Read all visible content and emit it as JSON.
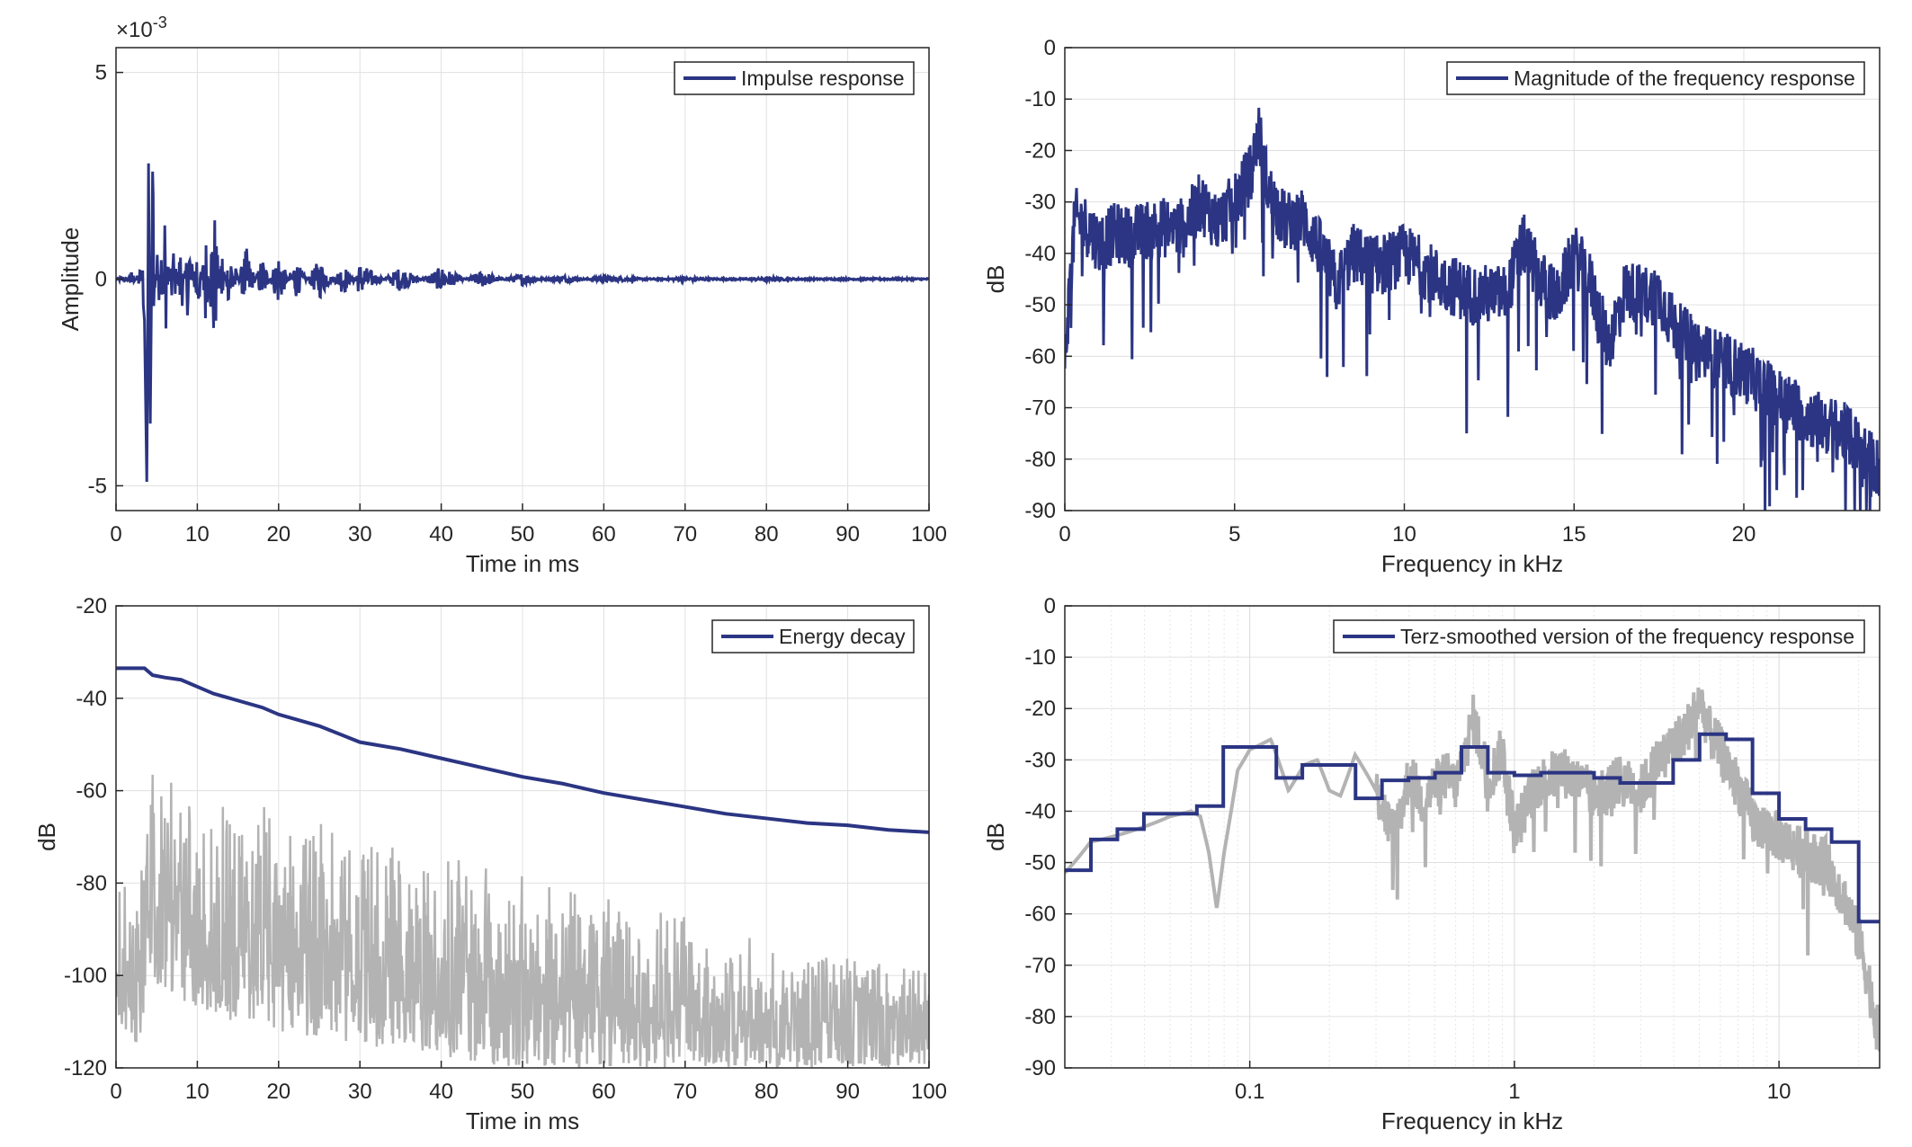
{
  "chart_data": [
    {
      "id": "impulse",
      "type": "line",
      "xlabel": "Time in ms",
      "ylabel": "Amplitude",
      "exponent_label": "×10",
      "exponent_power": "-3",
      "xlim": [
        0,
        100
      ],
      "ylim": [
        -5.6,
        5.6
      ],
      "xticks": [
        "0",
        "10",
        "20",
        "30",
        "40",
        "50",
        "60",
        "70",
        "80",
        "90",
        "100"
      ],
      "yticks": [
        {
          "v": 5,
          "t": "5"
        },
        {
          "v": 0,
          "t": "0"
        },
        {
          "v": -5,
          "t": "-5"
        }
      ],
      "grid": true,
      "legend": {
        "label": "Impulse response",
        "placement": "top-right"
      },
      "series": [
        {
          "name": "Impulse response",
          "color": "#2b3583",
          "x": [
            0,
            1,
            2,
            3,
            3.5,
            3.8,
            4.0,
            4.2,
            4.5,
            5,
            5.5,
            6,
            7,
            8,
            9,
            10,
            11,
            12,
            13,
            14,
            16,
            18,
            20,
            22,
            25,
            28,
            30,
            35,
            40,
            45,
            50,
            55,
            60,
            70,
            80,
            90,
            100
          ],
          "y": [
            0,
            0.1,
            -0.2,
            0.3,
            -1.0,
            -5.1,
            2.8,
            -3.8,
            2.6,
            -1.3,
            1.9,
            -1.6,
            1.0,
            -1.0,
            1.4,
            -1.3,
            1.3,
            -2.1,
            0.9,
            -0.9,
            0.8,
            -0.6,
            0.7,
            -0.5,
            0.5,
            -0.4,
            0.4,
            -0.3,
            0.3,
            -0.2,
            0.15,
            -0.1,
            0.08,
            -0.05,
            0.04,
            -0.02,
            0
          ]
        }
      ]
    },
    {
      "id": "magnitude",
      "type": "line",
      "xlabel": "Frequency in kHz",
      "ylabel": "dB",
      "xlim": [
        0,
        24
      ],
      "ylim": [
        -90,
        0
      ],
      "xticks": [
        {
          "v": 0,
          "t": "0"
        },
        {
          "v": 5,
          "t": "5"
        },
        {
          "v": 10,
          "t": "10"
        },
        {
          "v": 15,
          "t": "15"
        },
        {
          "v": 20,
          "t": "20"
        }
      ],
      "yticks": [
        "0",
        "-10",
        "-20",
        "-30",
        "-40",
        "-50",
        "-60",
        "-70",
        "-80",
        "-90"
      ],
      "grid": true,
      "legend": {
        "label": "Magnitude of the frequency response",
        "placement": "top-right"
      },
      "series": [
        {
          "name": "Magnitude of the frequency response",
          "color": "#2b3583",
          "x": [
            0,
            0.3,
            0.7,
            1.0,
            1.5,
            2.0,
            2.5,
            3.0,
            3.5,
            4.0,
            4.5,
            5.0,
            5.5,
            5.7,
            6.0,
            6.5,
            7.0,
            7.5,
            8.0,
            8.5,
            9.0,
            9.5,
            10.0,
            11.0,
            12.0,
            13.0,
            13.5,
            14.0,
            14.5,
            15.0,
            15.5,
            16.0,
            16.5,
            17.0,
            17.5,
            18.0,
            19.0,
            20.0,
            21.0,
            22.0,
            23.0,
            24.0
          ],
          "y": [
            -60,
            -33,
            -35,
            -38,
            -36,
            -37,
            -35,
            -35,
            -35,
            -30,
            -34,
            -30,
            -24,
            -16,
            -28,
            -34,
            -33,
            -39,
            -46,
            -40,
            -42,
            -42,
            -40,
            -45,
            -48,
            -48,
            -38,
            -45,
            -49,
            -40,
            -46,
            -58,
            -47,
            -48,
            -48,
            -55,
            -60,
            -63,
            -68,
            -72,
            -75,
            -82
          ]
        }
      ]
    },
    {
      "id": "energy",
      "type": "line",
      "xlabel": "Time in ms",
      "ylabel": "dB",
      "xlim": [
        0,
        100
      ],
      "ylim": [
        -120,
        -20
      ],
      "xticks": [
        "0",
        "10",
        "20",
        "30",
        "40",
        "50",
        "60",
        "70",
        "80",
        "90",
        "100"
      ],
      "yticks": [
        {
          "v": -20,
          "t": "-20"
        },
        {
          "v": -40,
          "t": "-40"
        },
        {
          "v": -60,
          "t": "-60"
        },
        {
          "v": -80,
          "t": "-80"
        },
        {
          "v": -100,
          "t": "-100"
        },
        {
          "v": -120,
          "t": "-120"
        }
      ],
      "grid": true,
      "legend": {
        "label": "Energy decay",
        "placement": "top-right"
      },
      "series": [
        {
          "name": "Energy decay",
          "color": "#2b3583",
          "x": [
            0,
            3.5,
            4.5,
            6,
            8,
            10,
            12,
            15,
            18,
            20,
            25,
            30,
            35,
            40,
            45,
            50,
            55,
            60,
            65,
            70,
            75,
            80,
            85,
            90,
            95,
            100
          ],
          "y": [
            -33.5,
            -33.5,
            -35,
            -35.5,
            -36,
            -37.5,
            -39,
            -40.5,
            -42,
            -43.5,
            -46,
            -49.5,
            -51,
            -53,
            -55,
            -57,
            -58.5,
            -60.5,
            -62,
            -63.5,
            -65,
            -66,
            -67,
            -67.5,
            -68.5,
            -69
          ]
        },
        {
          "color": "#b3b3b3",
          "envelope_x": [
            0,
            3,
            4,
            5,
            10,
            20,
            30,
            40,
            50,
            60,
            70,
            80,
            90,
            100
          ],
          "envelope_upper": [
            -75,
            -80,
            -48,
            -55,
            -60,
            -62,
            -68,
            -72,
            -78,
            -82,
            -86,
            -92,
            -95,
            -98
          ],
          "envelope_lower": [
            -112,
            -115,
            -100,
            -102,
            -108,
            -112,
            -115,
            -118,
            -120,
            -120,
            -120,
            -120,
            -120,
            -120
          ]
        }
      ]
    },
    {
      "id": "terz",
      "type": "line",
      "xlabel": "Frequency in kHz",
      "ylabel": "dB",
      "xscale": "log",
      "xlim": [
        0.02,
        24
      ],
      "ylim": [
        -90,
        0
      ],
      "xticks": [
        {
          "v": 0.1,
          "t": "0.1"
        },
        {
          "v": 1,
          "t": "1"
        },
        {
          "v": 10,
          "t": "10"
        }
      ],
      "yticks": [
        "0",
        "-10",
        "-20",
        "-30",
        "-40",
        "-50",
        "-60",
        "-70",
        "-80",
        "-90"
      ],
      "grid": true,
      "legend": {
        "label": "Terz-smoothed version of the frequency response",
        "placement": "top-right"
      },
      "series": [
        {
          "color": "#b3b3b3",
          "x": [
            0.02,
            0.025,
            0.03,
            0.04,
            0.05,
            0.06,
            0.065,
            0.07,
            0.075,
            0.08,
            0.09,
            0.1,
            0.12,
            0.14,
            0.16,
            0.18,
            0.2,
            0.22,
            0.25,
            0.3,
            0.35,
            0.4,
            0.45,
            0.5,
            0.55,
            0.6,
            0.7,
            0.8,
            0.9,
            1.0,
            1.2,
            1.5,
            2.0,
            2.5,
            3.0,
            3.5,
            4.0,
            4.5,
            5.0,
            5.5,
            6.0,
            7.0,
            8.0,
            10.0,
            12.0,
            15.0,
            18.0,
            20.0,
            22.0,
            24.0
          ],
          "y": [
            -52,
            -46,
            -45,
            -43,
            -41,
            -40,
            -41,
            -48,
            -59,
            -48,
            -32,
            -28,
            -26,
            -36,
            -31,
            -30,
            -36,
            -37,
            -29,
            -36,
            -45,
            -33,
            -38,
            -35,
            -33,
            -35,
            -22,
            -34,
            -28,
            -44,
            -35,
            -32,
            -37,
            -34,
            -36,
            -30,
            -27,
            -24,
            -18,
            -25,
            -28,
            -35,
            -42,
            -45,
            -48,
            -50,
            -58,
            -65,
            -74,
            -85
          ]
        },
        {
          "name": "Terz-smoothed version of the frequency response",
          "color": "#2b3583",
          "x": [
            0.02,
            0.0251,
            0.0316,
            0.0398,
            0.0501,
            0.0631,
            0.0794,
            0.1,
            0.126,
            0.158,
            0.2,
            0.251,
            0.316,
            0.398,
            0.501,
            0.631,
            0.794,
            1.0,
            1.26,
            1.58,
            2.0,
            2.51,
            3.16,
            3.98,
            5.01,
            6.31,
            7.94,
            10.0,
            12.6,
            15.8,
            20.0,
            24.0
          ],
          "y": [
            -51.5,
            -45.5,
            -43.5,
            -40.5,
            -40.5,
            -39,
            -27.5,
            -27.5,
            -33.5,
            -31,
            -31,
            -37.5,
            -34,
            -33.5,
            -32.5,
            -27.5,
            -32.5,
            -33,
            -32.5,
            -32.5,
            -33.5,
            -34.5,
            -34.5,
            -30,
            -25,
            -26,
            -36.5,
            -41.5,
            -43.5,
            -46,
            -61.5,
            -61.5
          ]
        }
      ]
    }
  ]
}
